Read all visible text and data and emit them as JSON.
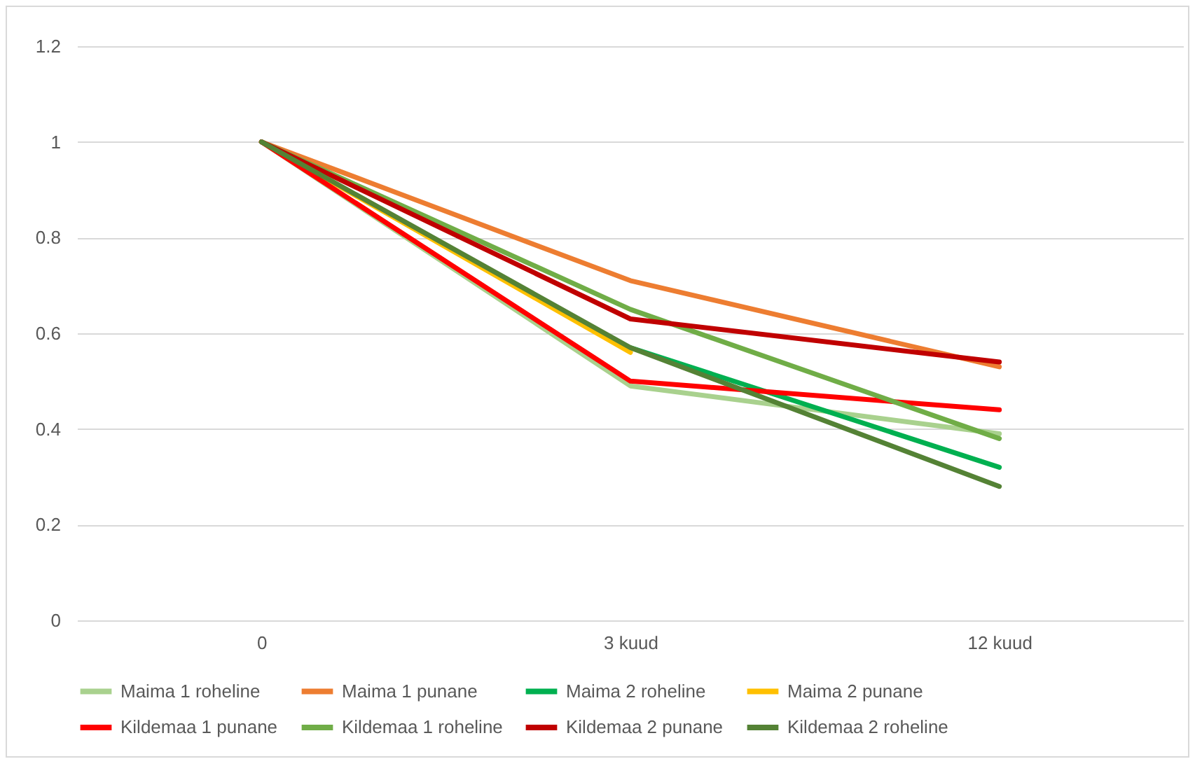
{
  "chart_data": {
    "type": "line",
    "categories": [
      "0",
      "3 kuud",
      "12 kuud"
    ],
    "ylim": [
      0,
      1.2
    ],
    "yticks": [
      0,
      0.2,
      0.4,
      0.6,
      0.8,
      1,
      1.2
    ],
    "grid": "y",
    "legend": "bottom",
    "series": [
      {
        "name": "Maima 1 roheline",
        "color": "#a9d18e",
        "values": [
          1,
          0.49,
          0.39
        ]
      },
      {
        "name": "Maima 1 punane",
        "color": "#ed7d31",
        "values": [
          1,
          0.71,
          0.53
        ]
      },
      {
        "name": "Maima 2 roheline",
        "color": "#00b050",
        "values": [
          null,
          0.57,
          0.32
        ]
      },
      {
        "name": "Maima 2 punane",
        "color": "#ffc000",
        "values": [
          1,
          0.56,
          null
        ]
      },
      {
        "name": "Kildemaa 1 punane",
        "color": "#ff0000",
        "values": [
          1,
          0.5,
          0.44
        ]
      },
      {
        "name": "Kildemaa 1 roheline",
        "color": "#70ad47",
        "values": [
          1,
          0.65,
          0.38
        ]
      },
      {
        "name": "Kildemaa 2 punane",
        "color": "#c00000",
        "values": [
          1,
          0.63,
          0.54
        ]
      },
      {
        "name": "Kildemaa 2 roheline",
        "color": "#548235",
        "values": [
          1,
          0.57,
          0.28
        ]
      }
    ]
  }
}
